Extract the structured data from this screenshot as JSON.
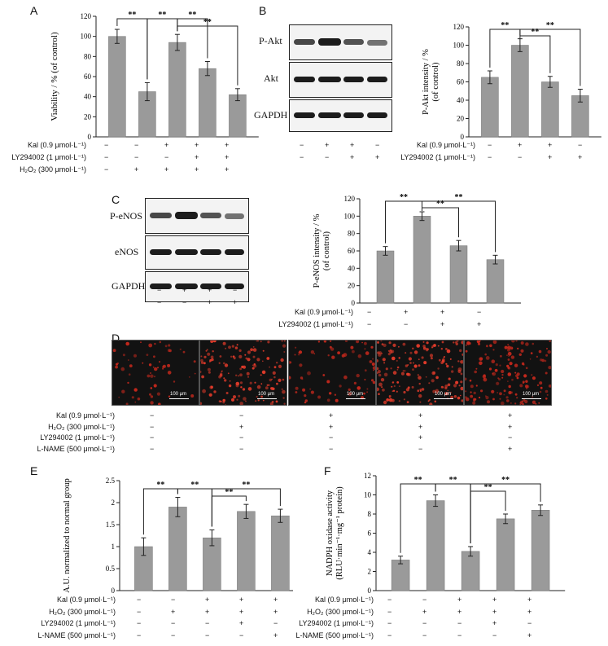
{
  "panels": {
    "A": {
      "label": "A"
    },
    "B": {
      "label": "B",
      "blot_labels": [
        "P-Akt",
        "Akt",
        "GAPDH"
      ]
    },
    "C": {
      "label": "C",
      "blot_labels": [
        "P-eNOS",
        "eNOS",
        "GAPDH"
      ]
    },
    "D": {
      "label": "D",
      "scale_text": "100 μm"
    },
    "E": {
      "label": "E"
    },
    "F": {
      "label": "F"
    }
  },
  "treatment_rows": {
    "A": [
      {
        "name": "Kal (0.9 μmol·L⁻¹)",
        "marks": [
          "−",
          "−",
          "+",
          "+",
          "+"
        ]
      },
      {
        "name": "LY294002 (1 μmol·L⁻¹)",
        "marks": [
          "−",
          "−",
          "−",
          "+",
          "+"
        ]
      },
      {
        "name": "H₂O₂ (300 μmol·L⁻¹)",
        "marks": [
          "−",
          "+",
          "+",
          "+",
          "+"
        ]
      }
    ],
    "B_blot": [
      {
        "marks": [
          "−",
          "+",
          "+",
          "−"
        ]
      },
      {
        "marks": [
          "−",
          "−",
          "+",
          "+"
        ]
      }
    ],
    "B": [
      {
        "name": "Kal (0.9 μmol·L⁻¹)",
        "marks": [
          "−",
          "+",
          "+",
          "−"
        ]
      },
      {
        "name": "LY294002 (1 μmol·L⁻¹)",
        "marks": [
          "−",
          "−",
          "+",
          "+"
        ]
      }
    ],
    "C_blot": [
      {
        "marks": [
          "−",
          "+",
          "+",
          "−"
        ]
      },
      {
        "marks": [
          "−",
          "−",
          "+",
          "+"
        ]
      }
    ],
    "C": [
      {
        "name": "Kal (0.9 μmol·L⁻¹)",
        "marks": [
          "−",
          "+",
          "+",
          "−"
        ]
      },
      {
        "name": "LY294002 (1 μmol·L⁻¹)",
        "marks": [
          "−",
          "−",
          "+",
          "+"
        ]
      }
    ],
    "D": [
      {
        "name": "Kal (0.9 μmol·L⁻¹)",
        "marks": [
          "−",
          "−",
          "+",
          "+",
          "+"
        ]
      },
      {
        "name": "H₂O₂ (300 μmol·L⁻¹)",
        "marks": [
          "−",
          "+",
          "+",
          "+",
          "+"
        ]
      },
      {
        "name": "LY294002 (1 μmol·L⁻¹)",
        "marks": [
          "−",
          "−",
          "−",
          "+",
          "−"
        ]
      },
      {
        "name": "L-NAME (500 μmol·L⁻¹)",
        "marks": [
          "−",
          "−",
          "−",
          "−",
          "+"
        ]
      }
    ],
    "E": [
      {
        "name": "Kal (0.9 μmol·L⁻¹)",
        "marks": [
          "−",
          "−",
          "+",
          "+",
          "+"
        ]
      },
      {
        "name": "H₂O₂ (300 μmol·L⁻¹)",
        "marks": [
          "−",
          "+",
          "+",
          "+",
          "+"
        ]
      },
      {
        "name": "LY294002 (1 μmol·L⁻¹)",
        "marks": [
          "−",
          "−",
          "−",
          "+",
          "−"
        ]
      },
      {
        "name": "L-NAME (500 μmol·L⁻¹)",
        "marks": [
          "−",
          "−",
          "−",
          "−",
          "+"
        ]
      }
    ],
    "F": [
      {
        "name": "Kal (0.9 μmol·L⁻¹)",
        "marks": [
          "−",
          "−",
          "+",
          "+",
          "+"
        ]
      },
      {
        "name": "H₂O₂ (300 μmol·L⁻¹)",
        "marks": [
          "−",
          "+",
          "+",
          "+",
          "+"
        ]
      },
      {
        "name": "LY294002 (1 μmol·L⁻¹)",
        "marks": [
          "−",
          "−",
          "−",
          "+",
          "−"
        ]
      },
      {
        "name": "L-NAME (500 μmol·L⁻¹)",
        "marks": [
          "−",
          "−",
          "−",
          "−",
          "+"
        ]
      }
    ]
  },
  "chart_data": [
    {
      "id": "A",
      "type": "bar",
      "ylabel": "Viability / % (of control)",
      "ylim": [
        0,
        120
      ],
      "yticks": [
        0,
        20,
        40,
        60,
        80,
        100,
        120
      ],
      "values": [
        100,
        45,
        94,
        68,
        42
      ],
      "errors": [
        7,
        9,
        8,
        7,
        6
      ],
      "bar_color": "#9a9a9a",
      "significance": [
        {
          "from": 0,
          "to": 1,
          "label": "**"
        },
        {
          "from": 1,
          "to": 2,
          "label": "**"
        },
        {
          "from": 2,
          "to": 3,
          "label": "**"
        },
        {
          "from": 2,
          "to": 4,
          "label": "**"
        }
      ]
    },
    {
      "id": "B",
      "type": "bar",
      "ylabel": "P-Akt intensity / % (of control)",
      "ylim": [
        0,
        120
      ],
      "yticks": [
        0,
        20,
        40,
        60,
        80,
        100,
        120
      ],
      "values": [
        65,
        100,
        60,
        45
      ],
      "errors": [
        7,
        7,
        6,
        7
      ],
      "bar_color": "#9a9a9a",
      "significance": [
        {
          "from": 0,
          "to": 1,
          "label": "**"
        },
        {
          "from": 1,
          "to": 2,
          "label": "**"
        },
        {
          "from": 1,
          "to": 3,
          "label": "**"
        }
      ]
    },
    {
      "id": "C",
      "type": "bar",
      "ylabel": "P-eNOS intensity / % (of control)",
      "ylim": [
        0,
        120
      ],
      "yticks": [
        0,
        20,
        40,
        60,
        80,
        100,
        120
      ],
      "values": [
        60,
        100,
        66,
        50
      ],
      "errors": [
        5,
        5,
        6,
        5
      ],
      "bar_color": "#9a9a9a",
      "significance": [
        {
          "from": 0,
          "to": 1,
          "label": "**"
        },
        {
          "from": 1,
          "to": 2,
          "label": "**"
        },
        {
          "from": 1,
          "to": 3,
          "label": "**"
        }
      ]
    },
    {
      "id": "E",
      "type": "bar",
      "ylabel": "A.U. normalized to normal group",
      "ylim": [
        0,
        2.5
      ],
      "yticks": [
        0,
        0.5,
        1.0,
        1.5,
        2.0,
        2.5
      ],
      "values": [
        1.0,
        1.9,
        1.2,
        1.8,
        1.7
      ],
      "errors": [
        0.2,
        0.22,
        0.18,
        0.16,
        0.15
      ],
      "bar_color": "#9a9a9a",
      "significance": [
        {
          "from": 0,
          "to": 1,
          "label": "**"
        },
        {
          "from": 1,
          "to": 2,
          "label": "**"
        },
        {
          "from": 2,
          "to": 3,
          "label": "**"
        },
        {
          "from": 2,
          "to": 4,
          "label": "**"
        }
      ]
    },
    {
      "id": "F",
      "type": "bar",
      "ylabel": "NADPH oxidase activity (RLU·min⁻¹·mg⁻¹ protein)",
      "ylim": [
        0,
        12
      ],
      "yticks": [
        0,
        2,
        4,
        6,
        8,
        10,
        12
      ],
      "values": [
        3.2,
        9.4,
        4.1,
        7.5,
        8.4
      ],
      "errors": [
        0.4,
        0.6,
        0.5,
        0.5,
        0.55
      ],
      "bar_color": "#9a9a9a",
      "significance": [
        {
          "from": 0,
          "to": 1,
          "label": "**"
        },
        {
          "from": 1,
          "to": 2,
          "label": "**"
        },
        {
          "from": 2,
          "to": 3,
          "label": "**"
        },
        {
          "from": 2,
          "to": 4,
          "label": "**"
        }
      ]
    }
  ]
}
